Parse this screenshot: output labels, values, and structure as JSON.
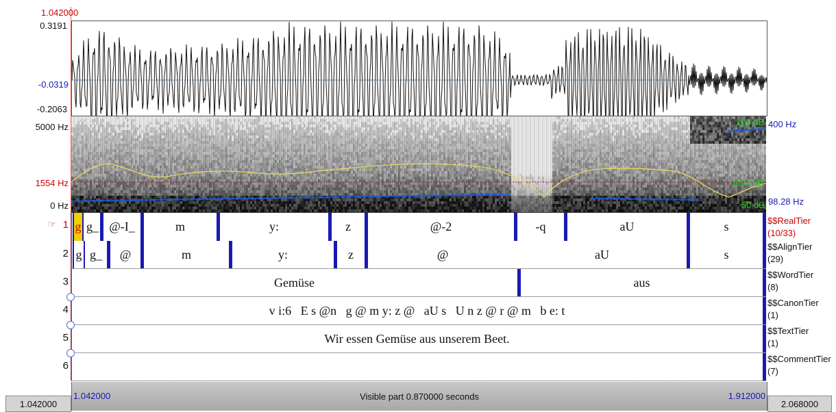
{
  "editor": {
    "cursor_time": "1.042000",
    "waveform": {
      "max": "0.3191",
      "center": "-0.0319",
      "min": "-0.2063"
    },
    "spectrogram": {
      "freq_top": "5000 Hz",
      "freq_cursor": "1554 Hz",
      "freq_bottom": "0 Hz",
      "pitch_top": "400 Hz",
      "pitch_bottom": "98.28 Hz",
      "intensity_top": "100 dB",
      "intensity_mid": "65.4 dB",
      "intensity_bottom": "50 dB"
    },
    "colors": {
      "cursor": "#cc0000",
      "boundary": "#1a1ab0",
      "pitch": "#1a5ad6",
      "formant": "#e8d860",
      "intensity": "#22cc22",
      "tier_name": "#111111"
    }
  },
  "tiers": [
    {
      "number": "1",
      "name": "$$RealTier",
      "count": "(10/33)",
      "selected": true,
      "pointer": "☞",
      "intervals": [
        "g",
        "g_",
        "@-I_",
        "m",
        "y:",
        "z",
        "@-2",
        "-q",
        "aU",
        "s"
      ]
    },
    {
      "number": "2",
      "name": "$$AlignTier",
      "count": "(29)",
      "intervals": [
        "g",
        "g_",
        "@",
        "m",
        "y:",
        "z",
        "@",
        "aU",
        "s"
      ]
    },
    {
      "number": "3",
      "name": "$$WordTier",
      "count": "(8)",
      "intervals": [
        "Gemüse",
        "aus"
      ]
    },
    {
      "number": "4",
      "name": "$$CanonTier",
      "count": "(1)",
      "text": "v i:6   E s @n   g @ m y: z @   aU s   U n z @ r @ m   b e: t"
    },
    {
      "number": "5",
      "name": "$$TextTier",
      "count": "(1)",
      "text": "Wir essen Gemüse aus unserem Beet."
    },
    {
      "number": "6",
      "name": "$$CommentTier",
      "count": "(7)",
      "text": ""
    }
  ],
  "navigation": {
    "total_start": "1.042000",
    "visible_start": "1.042000",
    "visible_label": "Visible part 0.870000 seconds",
    "visible_end": "1.912000",
    "total_end": "2.068000"
  }
}
